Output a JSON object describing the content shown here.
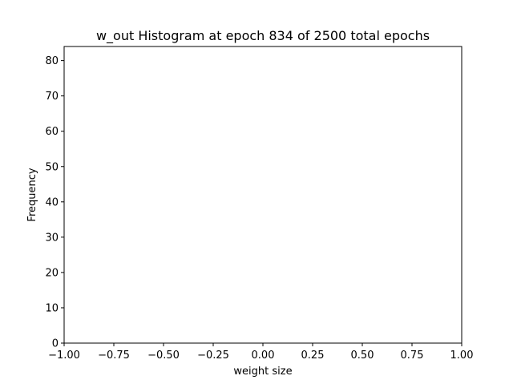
{
  "chart_data": {
    "type": "bar",
    "title": "w_out Histogram at epoch 834 of 2500 total epochs",
    "xlabel": "weight size",
    "ylabel": "Frequency",
    "xlim": [
      -1.0,
      1.0
    ],
    "ylim": [
      0,
      84
    ],
    "x_ticks": [
      -1.0,
      -0.75,
      -0.5,
      -0.25,
      0.0,
      0.25,
      0.5,
      0.75,
      1.0
    ],
    "x_tick_labels": [
      "−1.00",
      "−0.75",
      "−0.50",
      "−0.25",
      "0.00",
      "0.25",
      "0.50",
      "0.75",
      "1.00"
    ],
    "y_ticks": [
      0,
      10,
      20,
      30,
      40,
      50,
      60,
      70,
      80
    ],
    "y_tick_labels": [
      "0",
      "10",
      "20",
      "30",
      "40",
      "50",
      "60",
      "70",
      "80"
    ],
    "bins": [],
    "values": [],
    "bar_color": "#1f77b4",
    "grid": false,
    "legend": "none"
  }
}
